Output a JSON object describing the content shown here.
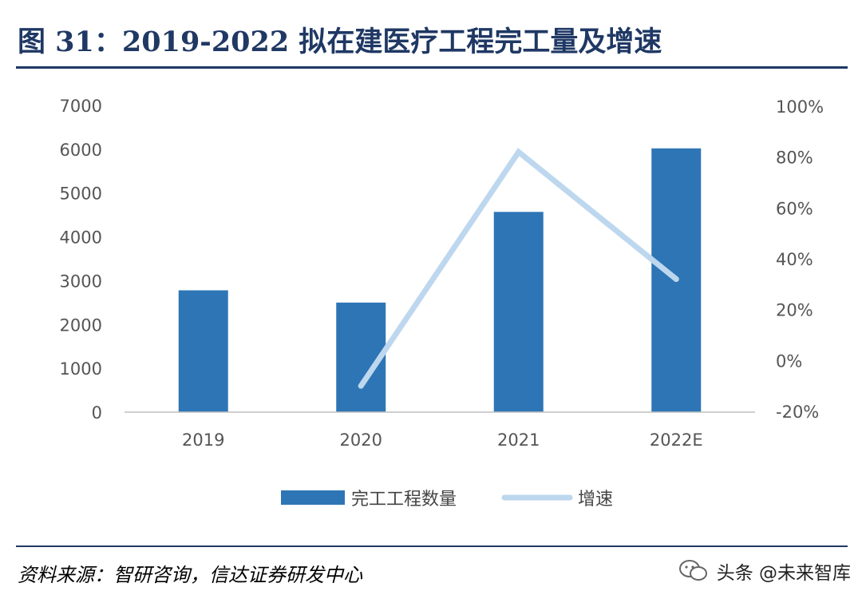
{
  "header": {
    "title": "图 31：2019-2022 拟在建医疗工程完工量及增速"
  },
  "footer": {
    "source": "资料来源：智研咨询，信达证券研发中心"
  },
  "watermark": {
    "text": "头条 @未来智库",
    "icon": "wechat-logo-icon"
  },
  "colors": {
    "bar": "#2e75b6",
    "line": "#bdd7ee",
    "title": "#1f3864"
  },
  "chart_data": {
    "type": "bar",
    "categories": [
      "2019",
      "2020",
      "2021",
      "2022E"
    ],
    "series": [
      {
        "name": "完工工程数量",
        "type": "bar",
        "axis": "left",
        "values": [
          2780,
          2500,
          4570,
          6020
        ]
      },
      {
        "name": "增速",
        "type": "line",
        "axis": "right",
        "values": [
          null,
          -10,
          82,
          32
        ],
        "unit": "%"
      }
    ],
    "y_left": {
      "min": 0,
      "max": 7000,
      "ticks": [
        "0",
        "1000",
        "2000",
        "3000",
        "4000",
        "5000",
        "6000",
        "7000"
      ]
    },
    "y_right": {
      "min": -20,
      "max": 100,
      "ticks": [
        "-20%",
        "0%",
        "20%",
        "40%",
        "60%",
        "80%",
        "100%"
      ]
    },
    "grid": false,
    "legend_position": "bottom"
  }
}
